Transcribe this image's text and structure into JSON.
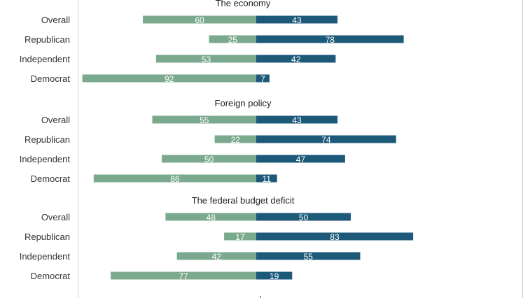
{
  "chart_data": {
    "type": "bar",
    "colors": {
      "left": "#7aa98d",
      "right": "#1d5a7a",
      "axis": "#cccccc"
    },
    "panels": [
      {
        "title": "The economy",
        "categories": [
          "Overall",
          "Republican",
          "Independent",
          "Democrat"
        ],
        "left_values": [
          60,
          25,
          53,
          92
        ],
        "right_values": [
          43,
          78,
          42,
          7
        ]
      },
      {
        "title": "Foreign policy",
        "categories": [
          "Overall",
          "Republican",
          "Independent",
          "Democrat"
        ],
        "left_values": [
          55,
          22,
          50,
          86
        ],
        "right_values": [
          43,
          74,
          47,
          11
        ]
      },
      {
        "title": "The federal budget deficit",
        "categories": [
          "Overall",
          "Republican",
          "Independent",
          "Democrat"
        ],
        "left_values": [
          48,
          17,
          42,
          77
        ],
        "right_values": [
          50,
          83,
          55,
          19
        ]
      }
    ]
  }
}
